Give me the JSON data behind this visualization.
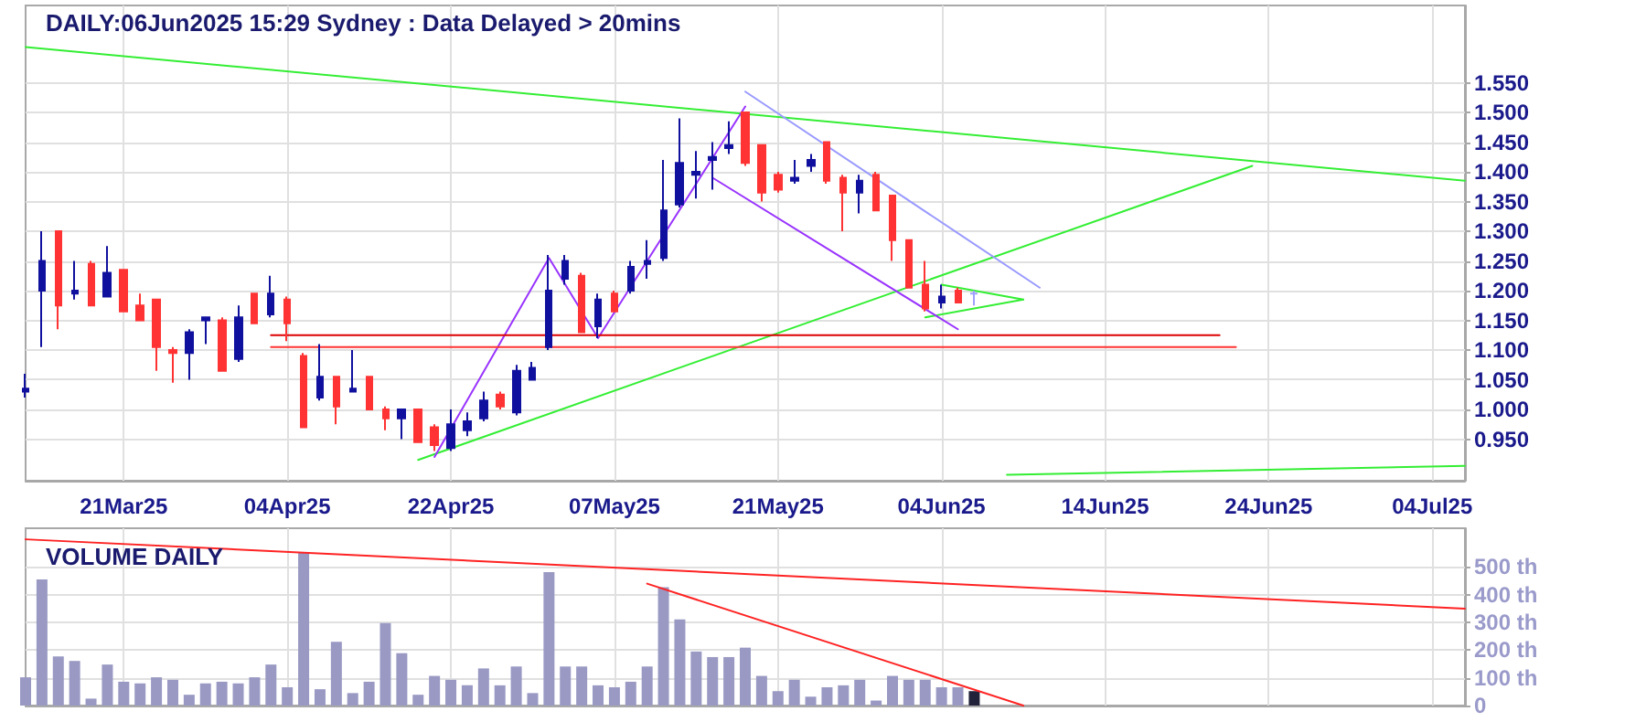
{
  "chart_data": [
    {
      "type": "candlestick",
      "title": "DAILY:06Jun2025 15:29 Sydney : Data Delayed > 20mins",
      "categories": [
        null,
        null,
        null,
        null,
        null,
        null,
        "21Mar25",
        null,
        null,
        null,
        null,
        null,
        null,
        null,
        null,
        null,
        "04Apr25",
        null,
        null,
        null,
        null,
        null,
        null,
        null,
        null,
        null,
        "22Apr25",
        null,
        null,
        null,
        null,
        null,
        null,
        null,
        null,
        null,
        "07May25",
        null,
        null,
        null,
        null,
        null,
        null,
        null,
        null,
        null,
        "21May25",
        null,
        null,
        null,
        null,
        null,
        null,
        null,
        null,
        null,
        "04Jun25",
        null,
        null,
        null,
        null,
        null,
        null,
        null,
        null,
        null,
        "14Jun25",
        null,
        null,
        null,
        null,
        null,
        null,
        null,
        null,
        null,
        "24Jun25",
        null,
        null,
        null,
        null,
        null,
        null,
        null,
        null,
        null,
        "04Jul25",
        null,
        null
      ],
      "ylim": [
        0.88,
        1.68
      ],
      "yticks": [
        {
          "value": 0.95,
          "label": "0.950"
        },
        {
          "value": 1.0,
          "label": "1.000"
        },
        {
          "value": 1.05,
          "label": "1.050"
        },
        {
          "value": 1.1,
          "label": "1.100"
        },
        {
          "value": 1.15,
          "label": "1.150"
        },
        {
          "value": 1.2,
          "label": "1.200"
        },
        {
          "value": 1.25,
          "label": "1.250"
        },
        {
          "value": 1.3,
          "label": "1.300"
        },
        {
          "value": 1.35,
          "label": "1.350"
        },
        {
          "value": 1.4,
          "label": "1.400"
        },
        {
          "value": 1.45,
          "label": "1.450"
        },
        {
          "value": 1.5,
          "label": "1.500"
        },
        {
          "value": 1.55,
          "label": "1.550"
        }
      ],
      "grid": true,
      "series": [
        {
          "ohlc": [
            [
              1.03,
              1.06,
              1.02,
              1.035
            ],
            [
              1.2,
              1.3,
              1.105,
              1.25
            ],
            [
              1.3,
              1.3,
              1.135,
              1.175
            ],
            [
              1.195,
              1.25,
              1.185,
              1.2
            ],
            [
              1.245,
              1.25,
              1.175,
              1.175
            ],
            [
              1.19,
              1.275,
              1.19,
              1.23
            ],
            [
              1.235,
              1.235,
              1.165,
              1.165
            ],
            [
              1.175,
              1.195,
              1.15,
              1.15
            ],
            [
              1.185,
              1.185,
              1.065,
              1.105
            ],
            [
              1.1,
              1.105,
              1.045,
              1.095
            ],
            [
              1.095,
              1.135,
              1.05,
              1.13
            ],
            [
              1.15,
              1.155,
              1.11,
              1.155
            ],
            [
              1.15,
              1.155,
              1.065,
              1.065
            ],
            [
              1.085,
              1.175,
              1.08,
              1.155
            ],
            [
              1.195,
              1.195,
              1.145,
              1.145
            ],
            [
              1.16,
              1.225,
              1.155,
              1.195
            ],
            [
              1.185,
              1.19,
              1.115,
              1.145
            ],
            [
              1.09,
              1.095,
              0.97,
              0.97
            ],
            [
              1.02,
              1.11,
              1.015,
              1.055
            ],
            [
              1.055,
              1.055,
              0.975,
              1.005
            ],
            [
              1.03,
              1.1,
              1.03,
              1.035
            ],
            [
              1.055,
              1.055,
              1.0,
              1.0
            ],
            [
              1.0,
              1.005,
              0.965,
              0.985
            ],
            [
              0.985,
              1.0,
              0.95,
              1.0
            ],
            [
              1.0,
              1.0,
              0.945,
              0.945
            ],
            [
              0.97,
              0.975,
              0.93,
              0.94
            ],
            [
              0.935,
              1.0,
              0.93,
              0.975
            ],
            [
              0.965,
              0.995,
              0.955,
              0.98
            ],
            [
              0.985,
              1.03,
              0.98,
              1.015
            ],
            [
              1.025,
              1.03,
              1.0,
              1.005
            ],
            [
              0.995,
              1.075,
              0.99,
              1.065
            ],
            [
              1.05,
              1.08,
              1.05,
              1.07
            ],
            [
              1.105,
              1.26,
              1.1,
              1.2
            ],
            [
              1.22,
              1.26,
              1.21,
              1.25
            ],
            [
              1.225,
              1.23,
              1.13,
              1.13
            ],
            [
              1.14,
              1.195,
              1.12,
              1.185
            ],
            [
              1.195,
              1.2,
              1.165,
              1.165
            ],
            [
              1.2,
              1.25,
              1.195,
              1.24
            ],
            [
              1.245,
              1.285,
              1.22,
              1.25
            ],
            [
              1.255,
              1.42,
              1.25,
              1.335
            ],
            [
              1.345,
              1.49,
              1.34,
              1.415
            ],
            [
              1.395,
              1.435,
              1.355,
              1.4
            ],
            [
              1.42,
              1.45,
              1.37,
              1.425
            ],
            [
              1.44,
              1.485,
              1.43,
              1.445
            ],
            [
              1.5,
              1.5,
              1.41,
              1.415
            ],
            [
              1.445,
              1.445,
              1.35,
              1.365
            ],
            [
              1.395,
              1.4,
              1.365,
              1.37
            ],
            [
              1.385,
              1.42,
              1.38,
              1.39
            ],
            [
              1.41,
              1.43,
              1.4,
              1.42
            ],
            [
              1.45,
              1.45,
              1.38,
              1.385
            ],
            [
              1.39,
              1.395,
              1.3,
              1.365
            ],
            [
              1.365,
              1.395,
              1.33,
              1.385
            ],
            [
              1.395,
              1.4,
              1.335,
              1.335
            ],
            [
              1.36,
              1.36,
              1.25,
              1.285
            ],
            [
              1.285,
              1.285,
              1.205,
              1.205
            ],
            [
              1.21,
              1.25,
              1.165,
              1.17
            ],
            [
              1.18,
              1.21,
              1.17,
              1.19
            ],
            [
              1.2,
              1.205,
              1.18,
              1.18
            ],
            [
              1.195,
              1.2,
              1.175,
              1.195
            ],
            null,
            null,
            null,
            null,
            null,
            null,
            null,
            null,
            null,
            null,
            null,
            null,
            null,
            null,
            null,
            null,
            null,
            null,
            null,
            null,
            null,
            null,
            null,
            null,
            null,
            null,
            null,
            null,
            null,
            null
          ],
          "colors": [
            "#10109e",
            "#10109e",
            "#ff3333",
            "#10109e",
            "#ff3333",
            "#10109e",
            "#ff3333",
            "#ff3333",
            "#ff3333",
            "#ff3333",
            "#10109e",
            "#10109e",
            "#ff3333",
            "#10109e",
            "#ff3333",
            "#10109e",
            "#ff3333",
            "#ff3333",
            "#10109e",
            "#ff3333",
            "#10109e",
            "#ff3333",
            "#ff3333",
            "#10109e",
            "#ff3333",
            "#ff3333",
            "#10109e",
            "#10109e",
            "#10109e",
            "#ff3333",
            "#10109e",
            "#10109e",
            "#10109e",
            "#10109e",
            "#ff3333",
            "#10109e",
            "#ff3333",
            "#10109e",
            "#10109e",
            "#10109e",
            "#10109e",
            "#10109e",
            "#10109e",
            "#10109e",
            "#ff3333",
            "#ff3333",
            "#ff3333",
            "#10109e",
            "#10109e",
            "#ff3333",
            "#ff3333",
            "#10109e",
            "#ff3333",
            "#ff3333",
            "#ff3333",
            "#ff3333",
            "#10109e",
            "#ff3333",
            "#a0a0ff",
            null,
            null,
            null,
            null,
            null,
            null,
            null,
            null,
            null,
            null,
            null,
            null,
            null,
            null,
            null,
            null,
            null,
            null,
            null,
            null,
            null,
            null,
            null,
            null,
            null,
            null,
            null,
            null,
            null,
            null
          ]
        },
        {
          "type": "line",
          "color": "#33ee33",
          "values": [
            1.61,
            null,
            null,
            null,
            null,
            null,
            null,
            null,
            null,
            null,
            null,
            null,
            null,
            null,
            null,
            null,
            null,
            null,
            null,
            null,
            null,
            null,
            null,
            null,
            null,
            null,
            null,
            null,
            null,
            null,
            null,
            null,
            null,
            null,
            null,
            null,
            null,
            null,
            null,
            null,
            null,
            null,
            null,
            null,
            null,
            null,
            null,
            null,
            null,
            null,
            null,
            null,
            null,
            null,
            null,
            null,
            null,
            null,
            null,
            null,
            null,
            null,
            null,
            null,
            null,
            null,
            null,
            null,
            null,
            null,
            null,
            null,
            null,
            null,
            null,
            null,
            null,
            null,
            null,
            null,
            null,
            null,
            null,
            null,
            null,
            null,
            null,
            null,
            1.385
          ]
        },
        {
          "type": "line",
          "color": "#33ee33",
          "values": [
            null,
            null,
            null,
            null,
            null,
            null,
            null,
            null,
            null,
            null,
            null,
            null,
            null,
            null,
            null,
            null,
            null,
            null,
            null,
            null,
            null,
            null,
            null,
            null,
            0.915,
            null,
            null,
            null,
            null,
            null,
            null,
            null,
            null,
            null,
            null,
            null,
            null,
            null,
            null,
            null,
            null,
            null,
            null,
            null,
            null,
            null,
            null,
            null,
            null,
            null,
            null,
            null,
            null,
            null,
            null,
            null,
            null,
            null,
            null,
            null,
            null,
            null,
            null,
            null,
            null,
            null,
            null,
            null,
            null,
            null,
            null,
            null,
            null,
            null,
            null,
            1.41,
            null,
            null,
            null,
            null,
            null,
            null,
            null,
            null,
            null,
            null,
            null,
            null,
            null
          ]
        },
        {
          "type": "line",
          "color": "#33ee33",
          "values": [
            null,
            null,
            null,
            null,
            null,
            null,
            null,
            null,
            null,
            null,
            null,
            null,
            null,
            null,
            null,
            null,
            null,
            null,
            null,
            null,
            null,
            null,
            null,
            null,
            null,
            null,
            null,
            null,
            null,
            null,
            null,
            null,
            null,
            null,
            null,
            null,
            null,
            null,
            null,
            null,
            null,
            null,
            null,
            null,
            null,
            null,
            null,
            null,
            null,
            null,
            null,
            null,
            null,
            null,
            null,
            null,
            null,
            null,
            null,
            null,
            0.89,
            null,
            null,
            null,
            null,
            null,
            null,
            null,
            null,
            null,
            null,
            null,
            null,
            null,
            null,
            null,
            null,
            null,
            null,
            null,
            null,
            null,
            null,
            null,
            null,
            null,
            null,
            null,
            0.905
          ]
        },
        {
          "type": "line",
          "color": "#33ee33",
          "values": [
            null,
            null,
            null,
            null,
            null,
            null,
            null,
            null,
            null,
            null,
            null,
            null,
            null,
            null,
            null,
            null,
            null,
            null,
            null,
            null,
            null,
            null,
            null,
            null,
            null,
            null,
            null,
            null,
            null,
            null,
            null,
            null,
            null,
            null,
            null,
            null,
            null,
            null,
            null,
            null,
            null,
            null,
            null,
            null,
            null,
            null,
            null,
            null,
            null,
            null,
            null,
            null,
            null,
            null,
            null,
            null,
            1.21,
            null,
            null,
            null,
            null,
            1.185,
            null,
            null,
            null,
            null,
            null,
            null,
            null,
            null,
            null,
            null,
            null,
            null,
            null,
            null,
            null,
            null,
            null,
            null,
            null,
            null,
            null,
            null,
            null,
            null,
            null,
            null,
            null
          ]
        },
        {
          "type": "line",
          "color": "#33ee33",
          "values": [
            null,
            null,
            null,
            null,
            null,
            null,
            null,
            null,
            null,
            null,
            null,
            null,
            null,
            null,
            null,
            null,
            null,
            null,
            null,
            null,
            null,
            null,
            null,
            null,
            null,
            null,
            null,
            null,
            null,
            null,
            null,
            null,
            null,
            null,
            null,
            null,
            null,
            null,
            null,
            null,
            null,
            null,
            null,
            null,
            null,
            null,
            null,
            null,
            null,
            null,
            null,
            null,
            null,
            null,
            null,
            1.155,
            null,
            null,
            null,
            null,
            null,
            1.185,
            null,
            null,
            null,
            null,
            null,
            null,
            null,
            null,
            null,
            null,
            null,
            null,
            null,
            null,
            null,
            null,
            null,
            null,
            null,
            null,
            null,
            null,
            null,
            null,
            null,
            null,
            null
          ]
        },
        {
          "type": "line",
          "color": "#9933ff",
          "values": [
            null,
            null,
            null,
            null,
            null,
            null,
            null,
            null,
            null,
            null,
            null,
            null,
            null,
            null,
            null,
            null,
            null,
            null,
            null,
            null,
            null,
            null,
            null,
            null,
            null,
            0.92,
            null,
            null,
            null,
            null,
            null,
            null,
            1.255,
            null,
            null,
            1.12,
            null,
            null,
            null,
            null,
            null,
            null,
            null,
            null,
            1.51,
            null,
            null,
            null,
            null,
            null,
            null,
            null,
            null,
            null,
            null,
            null,
            null,
            null,
            null,
            null,
            null,
            null,
            null,
            null,
            null,
            null,
            null,
            null,
            null,
            null,
            null,
            null,
            null,
            null,
            null,
            null,
            null,
            null,
            null,
            null,
            null,
            null,
            null,
            null,
            null,
            null,
            null,
            null,
            null
          ]
        },
        {
          "type": "line",
          "color": "#9933ff",
          "values": [
            null,
            null,
            null,
            null,
            null,
            null,
            null,
            null,
            null,
            null,
            null,
            null,
            null,
            null,
            null,
            null,
            null,
            null,
            null,
            null,
            null,
            null,
            null,
            null,
            null,
            null,
            null,
            null,
            null,
            null,
            null,
            null,
            null,
            null,
            null,
            null,
            null,
            null,
            null,
            null,
            null,
            null,
            1.39,
            null,
            null,
            null,
            null,
            null,
            null,
            null,
            null,
            null,
            null,
            null,
            null,
            null,
            null,
            1.135,
            null,
            null,
            null,
            null,
            null,
            null,
            null,
            null,
            null,
            null,
            null,
            null,
            null,
            null,
            null,
            null,
            null,
            null,
            null,
            null,
            null,
            null,
            null,
            null,
            null,
            null,
            null,
            null,
            null,
            null,
            null
          ]
        },
        {
          "type": "line",
          "color": "#9999ff",
          "values": [
            null,
            null,
            null,
            null,
            null,
            null,
            null,
            null,
            null,
            null,
            null,
            null,
            null,
            null,
            null,
            null,
            null,
            null,
            null,
            null,
            null,
            null,
            null,
            null,
            null,
            null,
            null,
            null,
            null,
            null,
            null,
            null,
            null,
            null,
            null,
            null,
            null,
            null,
            null,
            null,
            null,
            null,
            null,
            null,
            1.535,
            null,
            null,
            null,
            null,
            null,
            null,
            null,
            null,
            null,
            null,
            null,
            null,
            null,
            null,
            null,
            null,
            null,
            1.205,
            null,
            null,
            null,
            null,
            null,
            null,
            null,
            null,
            null,
            null,
            null,
            null,
            null,
            null,
            null,
            null,
            null,
            null,
            null,
            null,
            null,
            null,
            null,
            null,
            null,
            null
          ]
        },
        {
          "type": "line",
          "color": "#dd0000",
          "values": [
            null,
            null,
            null,
            null,
            null,
            null,
            null,
            null,
            null,
            null,
            null,
            null,
            null,
            null,
            null,
            1.125,
            null,
            null,
            null,
            null,
            null,
            null,
            null,
            null,
            null,
            null,
            null,
            null,
            null,
            null,
            null,
            null,
            null,
            null,
            null,
            null,
            null,
            null,
            null,
            null,
            null,
            null,
            null,
            null,
            null,
            null,
            null,
            null,
            null,
            null,
            null,
            null,
            null,
            null,
            null,
            null,
            null,
            null,
            null,
            null,
            null,
            null,
            null,
            null,
            null,
            null,
            null,
            null,
            null,
            null,
            null,
            null,
            null,
            1.125,
            null,
            null,
            null,
            null,
            null,
            null,
            null,
            null,
            null,
            null,
            null,
            null,
            null,
            null,
            null
          ]
        },
        {
          "type": "line",
          "color": "#ff3333",
          "values": [
            null,
            null,
            null,
            null,
            null,
            null,
            null,
            null,
            null,
            null,
            null,
            null,
            null,
            null,
            null,
            1.105,
            null,
            null,
            null,
            null,
            null,
            null,
            null,
            null,
            null,
            null,
            null,
            null,
            null,
            null,
            null,
            null,
            null,
            null,
            null,
            null,
            null,
            null,
            null,
            null,
            null,
            null,
            null,
            null,
            null,
            null,
            null,
            null,
            null,
            null,
            null,
            null,
            null,
            null,
            null,
            null,
            null,
            null,
            null,
            null,
            null,
            null,
            null,
            null,
            null,
            null,
            null,
            null,
            null,
            null,
            null,
            null,
            null,
            null,
            1.105,
            null,
            null,
            null,
            null,
            null,
            null,
            null,
            null,
            null,
            null,
            null,
            null,
            null,
            null
          ]
        }
      ]
    },
    {
      "type": "bar",
      "title": "VOLUME DAILY",
      "categories": [
        null,
        null,
        null,
        null,
        null,
        null,
        null,
        null,
        null,
        null,
        null,
        null,
        null,
        null,
        null,
        null,
        null,
        null,
        null,
        null,
        null,
        null,
        null,
        null,
        null,
        null,
        null,
        null,
        null,
        null,
        null,
        null,
        null,
        null,
        null,
        null,
        null,
        null,
        null,
        null,
        null,
        null,
        null,
        null,
        null,
        null,
        null,
        null,
        null,
        null,
        null,
        null,
        null,
        null,
        null,
        null,
        null,
        null,
        null,
        null,
        null,
        null,
        null,
        null,
        null,
        null,
        null,
        null,
        null,
        null,
        null,
        null,
        null,
        null,
        null,
        null,
        null,
        null,
        null,
        null,
        null,
        null,
        null,
        null,
        null,
        null,
        null,
        null,
        null
      ],
      "tick_labels": "y",
      "ylim": [
        0,
        640
      ],
      "yticks": [
        0,
        {
          "value": 100,
          "label": "100 th"
        },
        {
          "value": 200,
          "label": "200 th"
        },
        {
          "value": 300,
          "label": "300 th"
        },
        {
          "value": 400,
          "label": "400 th"
        },
        {
          "value": 500,
          "label": "500 th"
        }
      ],
      "grid": true,
      "series": [
        {
          "values": [
            102,
            455,
            177,
            161,
            25,
            148,
            86,
            80,
            102,
            93,
            39,
            80,
            86,
            80,
            102,
            148,
            66,
            552,
            59,
            230,
            45,
            86,
            298,
            189,
            39,
            107,
            93,
            73,
            134,
            73,
            141,
            45,
            482,
            141,
            141,
            73,
            66,
            86,
            141,
            427,
            311,
            195,
            175,
            175,
            209,
            107,
            52,
            93,
            32,
            66,
            73,
            93,
            18,
            107,
            93,
            93,
            66,
            66,
            52,
            null,
            null,
            null,
            null,
            null,
            null,
            null,
            null,
            null,
            null,
            null,
            null,
            null,
            null,
            null,
            null,
            null,
            null,
            null,
            null,
            null,
            null,
            null,
            null,
            null,
            null,
            null,
            null,
            null,
            null
          ],
          "colors": [
            "#9999c4",
            "#9999c4",
            "#9999c4",
            "#9999c4",
            "#9999c4",
            "#9999c4",
            "#9999c4",
            "#9999c4",
            "#9999c4",
            "#9999c4",
            "#9999c4",
            "#9999c4",
            "#9999c4",
            "#9999c4",
            "#9999c4",
            "#9999c4",
            "#9999c4",
            "#9999c4",
            "#9999c4",
            "#9999c4",
            "#9999c4",
            "#9999c4",
            "#9999c4",
            "#9999c4",
            "#9999c4",
            "#9999c4",
            "#9999c4",
            "#9999c4",
            "#9999c4",
            "#9999c4",
            "#9999c4",
            "#9999c4",
            "#9999c4",
            "#9999c4",
            "#9999c4",
            "#9999c4",
            "#9999c4",
            "#9999c4",
            "#9999c4",
            "#9999c4",
            "#9999c4",
            "#9999c4",
            "#9999c4",
            "#9999c4",
            "#9999c4",
            "#9999c4",
            "#9999c4",
            "#9999c4",
            "#9999c4",
            "#9999c4",
            "#9999c4",
            "#9999c4",
            "#9999c4",
            "#9999c4",
            "#9999c4",
            "#9999c4",
            "#9999c4",
            "#9999c4",
            "#22223a",
            null,
            null,
            null,
            null,
            null,
            null,
            null,
            null,
            null,
            null,
            null,
            null,
            null,
            null,
            null,
            null,
            null,
            null,
            null,
            null,
            null,
            null,
            null,
            null,
            null,
            null,
            null,
            null,
            null,
            null
          ]
        },
        {
          "type": "line",
          "color": "#ff2222",
          "values": [
            600,
            null,
            null,
            null,
            null,
            null,
            null,
            null,
            null,
            null,
            null,
            null,
            null,
            null,
            null,
            null,
            null,
            null,
            null,
            null,
            null,
            null,
            null,
            null,
            null,
            null,
            null,
            null,
            null,
            null,
            null,
            null,
            null,
            null,
            null,
            null,
            null,
            null,
            null,
            null,
            null,
            null,
            null,
            null,
            null,
            null,
            null,
            null,
            null,
            null,
            null,
            null,
            null,
            null,
            null,
            null,
            null,
            null,
            null,
            null,
            null,
            null,
            null,
            null,
            null,
            null,
            null,
            null,
            null,
            null,
            null,
            null,
            null,
            null,
            null,
            null,
            null,
            null,
            null,
            null,
            null,
            null,
            null,
            null,
            null,
            null,
            null,
            null,
            350
          ]
        },
        {
          "type": "line",
          "color": "#ff2222",
          "values": [
            null,
            null,
            null,
            null,
            null,
            null,
            null,
            null,
            null,
            null,
            null,
            null,
            null,
            null,
            null,
            null,
            null,
            null,
            null,
            null,
            null,
            null,
            null,
            null,
            null,
            null,
            null,
            null,
            null,
            null,
            null,
            null,
            null,
            null,
            null,
            null,
            null,
            null,
            440,
            null,
            null,
            null,
            null,
            null,
            null,
            null,
            null,
            null,
            null,
            null,
            null,
            null,
            null,
            null,
            null,
            null,
            null,
            null,
            null,
            null,
            null,
            0,
            null,
            null,
            null,
            null,
            null,
            null,
            null,
            null,
            null,
            null,
            null,
            null,
            null,
            null,
            null,
            null,
            null,
            null,
            null,
            null,
            null,
            null,
            null,
            null,
            null,
            null,
            null
          ]
        }
      ]
    }
  ]
}
